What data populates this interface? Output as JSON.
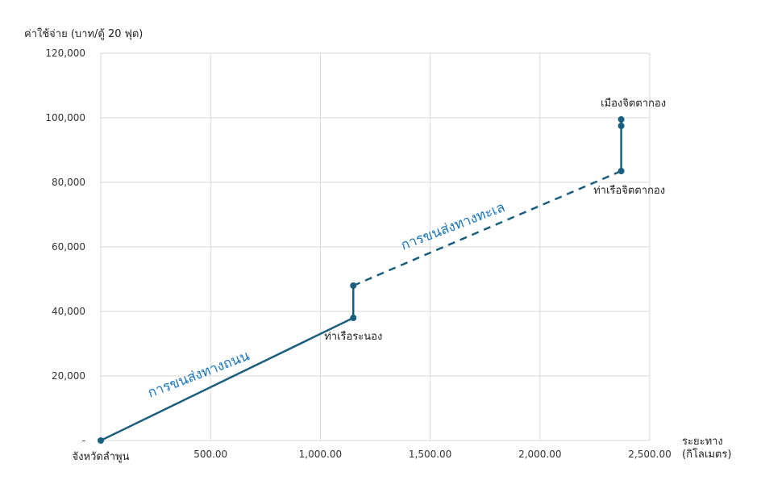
{
  "chart_data": {
    "type": "line",
    "ylabel": "ค่าใช้จ่าย (บาท/ตู้ 20 ฟุต)",
    "xlabel_line1": "ระยะทาง",
    "xlabel_line2": "(กิโลเมตร)",
    "xlim": [
      0,
      2500
    ],
    "ylim": [
      0,
      120000
    ],
    "x_ticks": [
      0,
      500,
      1000,
      1500,
      2000,
      2500
    ],
    "x_tick_labels": [
      "",
      "500.00",
      "1,000.00",
      "1,500.00",
      "2,000.00",
      "2,500.00"
    ],
    "y_ticks": [
      0,
      20000,
      40000,
      60000,
      80000,
      100000,
      120000
    ],
    "y_tick_labels": [
      "-",
      "20,000",
      "40,000",
      "60,000",
      "80,000",
      "100,000",
      "120,000"
    ],
    "grid": true,
    "series": [
      {
        "style": "solid",
        "points": [
          [
            0,
            0
          ],
          [
            1150,
            38000
          ]
        ]
      },
      {
        "style": "solid",
        "points": [
          [
            1150,
            38000
          ],
          [
            1150,
            48000
          ]
        ]
      },
      {
        "style": "dashed",
        "points": [
          [
            1150,
            48000
          ],
          [
            2370,
            83500
          ]
        ]
      },
      {
        "style": "solid",
        "points": [
          [
            2370,
            83500
          ],
          [
            2370,
            97500
          ],
          [
            2370,
            99500
          ]
        ]
      }
    ],
    "markers": [
      [
        0,
        0
      ],
      [
        1150,
        38000
      ],
      [
        1150,
        48000
      ],
      [
        2370,
        83500
      ],
      [
        2370,
        97500
      ],
      [
        2370,
        99500
      ]
    ],
    "point_labels": [
      {
        "text": "จังหวัดลำพูน",
        "x": 0,
        "y": 0
      },
      {
        "text": "ท่าเรือระนอง",
        "x": 1150,
        "y": 38000
      },
      {
        "text": "ท่าเรือจิตตากอง",
        "x": 2370,
        "y": 83500
      },
      {
        "text": "เมืองจิตตากอง",
        "x": 2370,
        "y": 99500
      }
    ],
    "mode_labels": [
      {
        "text": "การขนส่งทางถนน"
      },
      {
        "text": "การขนส่งทางทะเล"
      }
    ],
    "colors": {
      "line": "#1b5e7e",
      "mode_label": "#1a75bc",
      "grid": "#d9d9d9"
    }
  }
}
